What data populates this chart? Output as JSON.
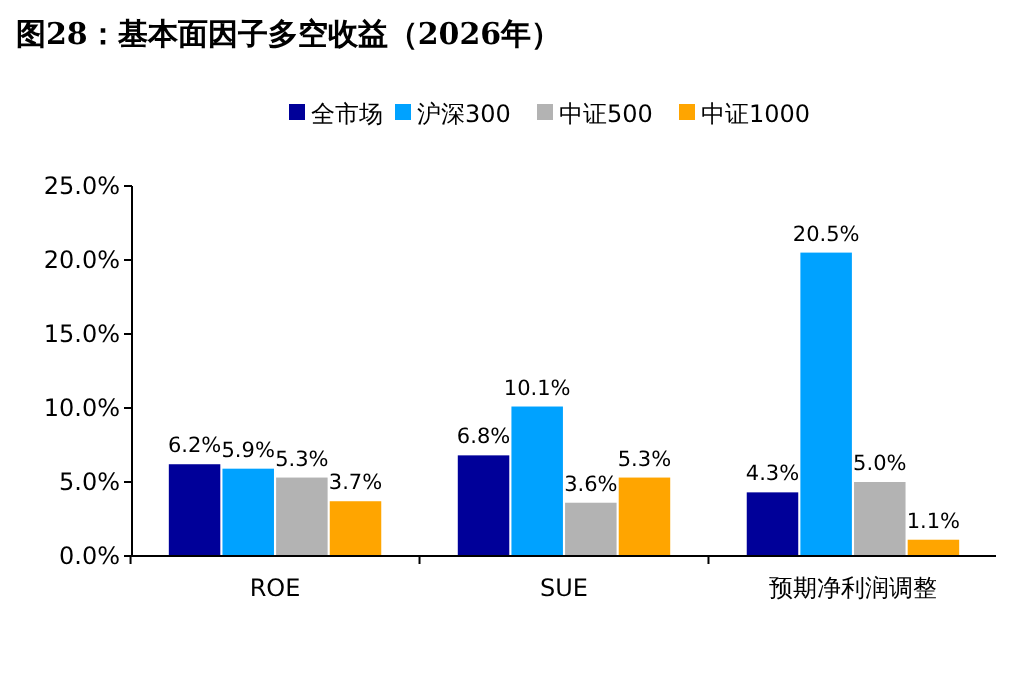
{
  "chart_data": {
    "type": "bar",
    "title": "图28：基本面因子多空收益（2026年）",
    "categories": [
      "ROE",
      "SUE",
      "预期净利润调整"
    ],
    "series": [
      {
        "name": "全市场",
        "color": "#000099",
        "values": [
          6.2,
          6.8,
          4.3
        ]
      },
      {
        "name": "沪深300",
        "color": "#00a2ff",
        "values": [
          5.9,
          10.1,
          20.5
        ]
      },
      {
        "name": "中证500",
        "color": "#b3b3b3",
        "values": [
          5.3,
          3.6,
          5.0
        ]
      },
      {
        "name": "中证1000",
        "color": "#ffa500",
        "values": [
          3.7,
          5.3,
          1.1
        ]
      }
    ],
    "ylim": [
      0,
      25
    ],
    "yticks": [
      {
        "value": 0,
        "label": "0.0%"
      },
      {
        "value": 5,
        "label": "5.0%"
      },
      {
        "value": 10,
        "label": "10.0%"
      },
      {
        "value": 15,
        "label": "15.0%"
      },
      {
        "value": 20,
        "label": "20.0%"
      },
      {
        "value": 25,
        "label": "25.0%"
      }
    ],
    "value_labels": [
      [
        "6.2%",
        "6.8%",
        "4.3%"
      ],
      [
        "5.9%",
        "10.1%",
        "20.5%"
      ],
      [
        "5.3%",
        "3.6%",
        "5.0%"
      ],
      [
        "3.7%",
        "5.3%",
        "1.1%"
      ]
    ],
    "legend": "top",
    "grid": false
  }
}
